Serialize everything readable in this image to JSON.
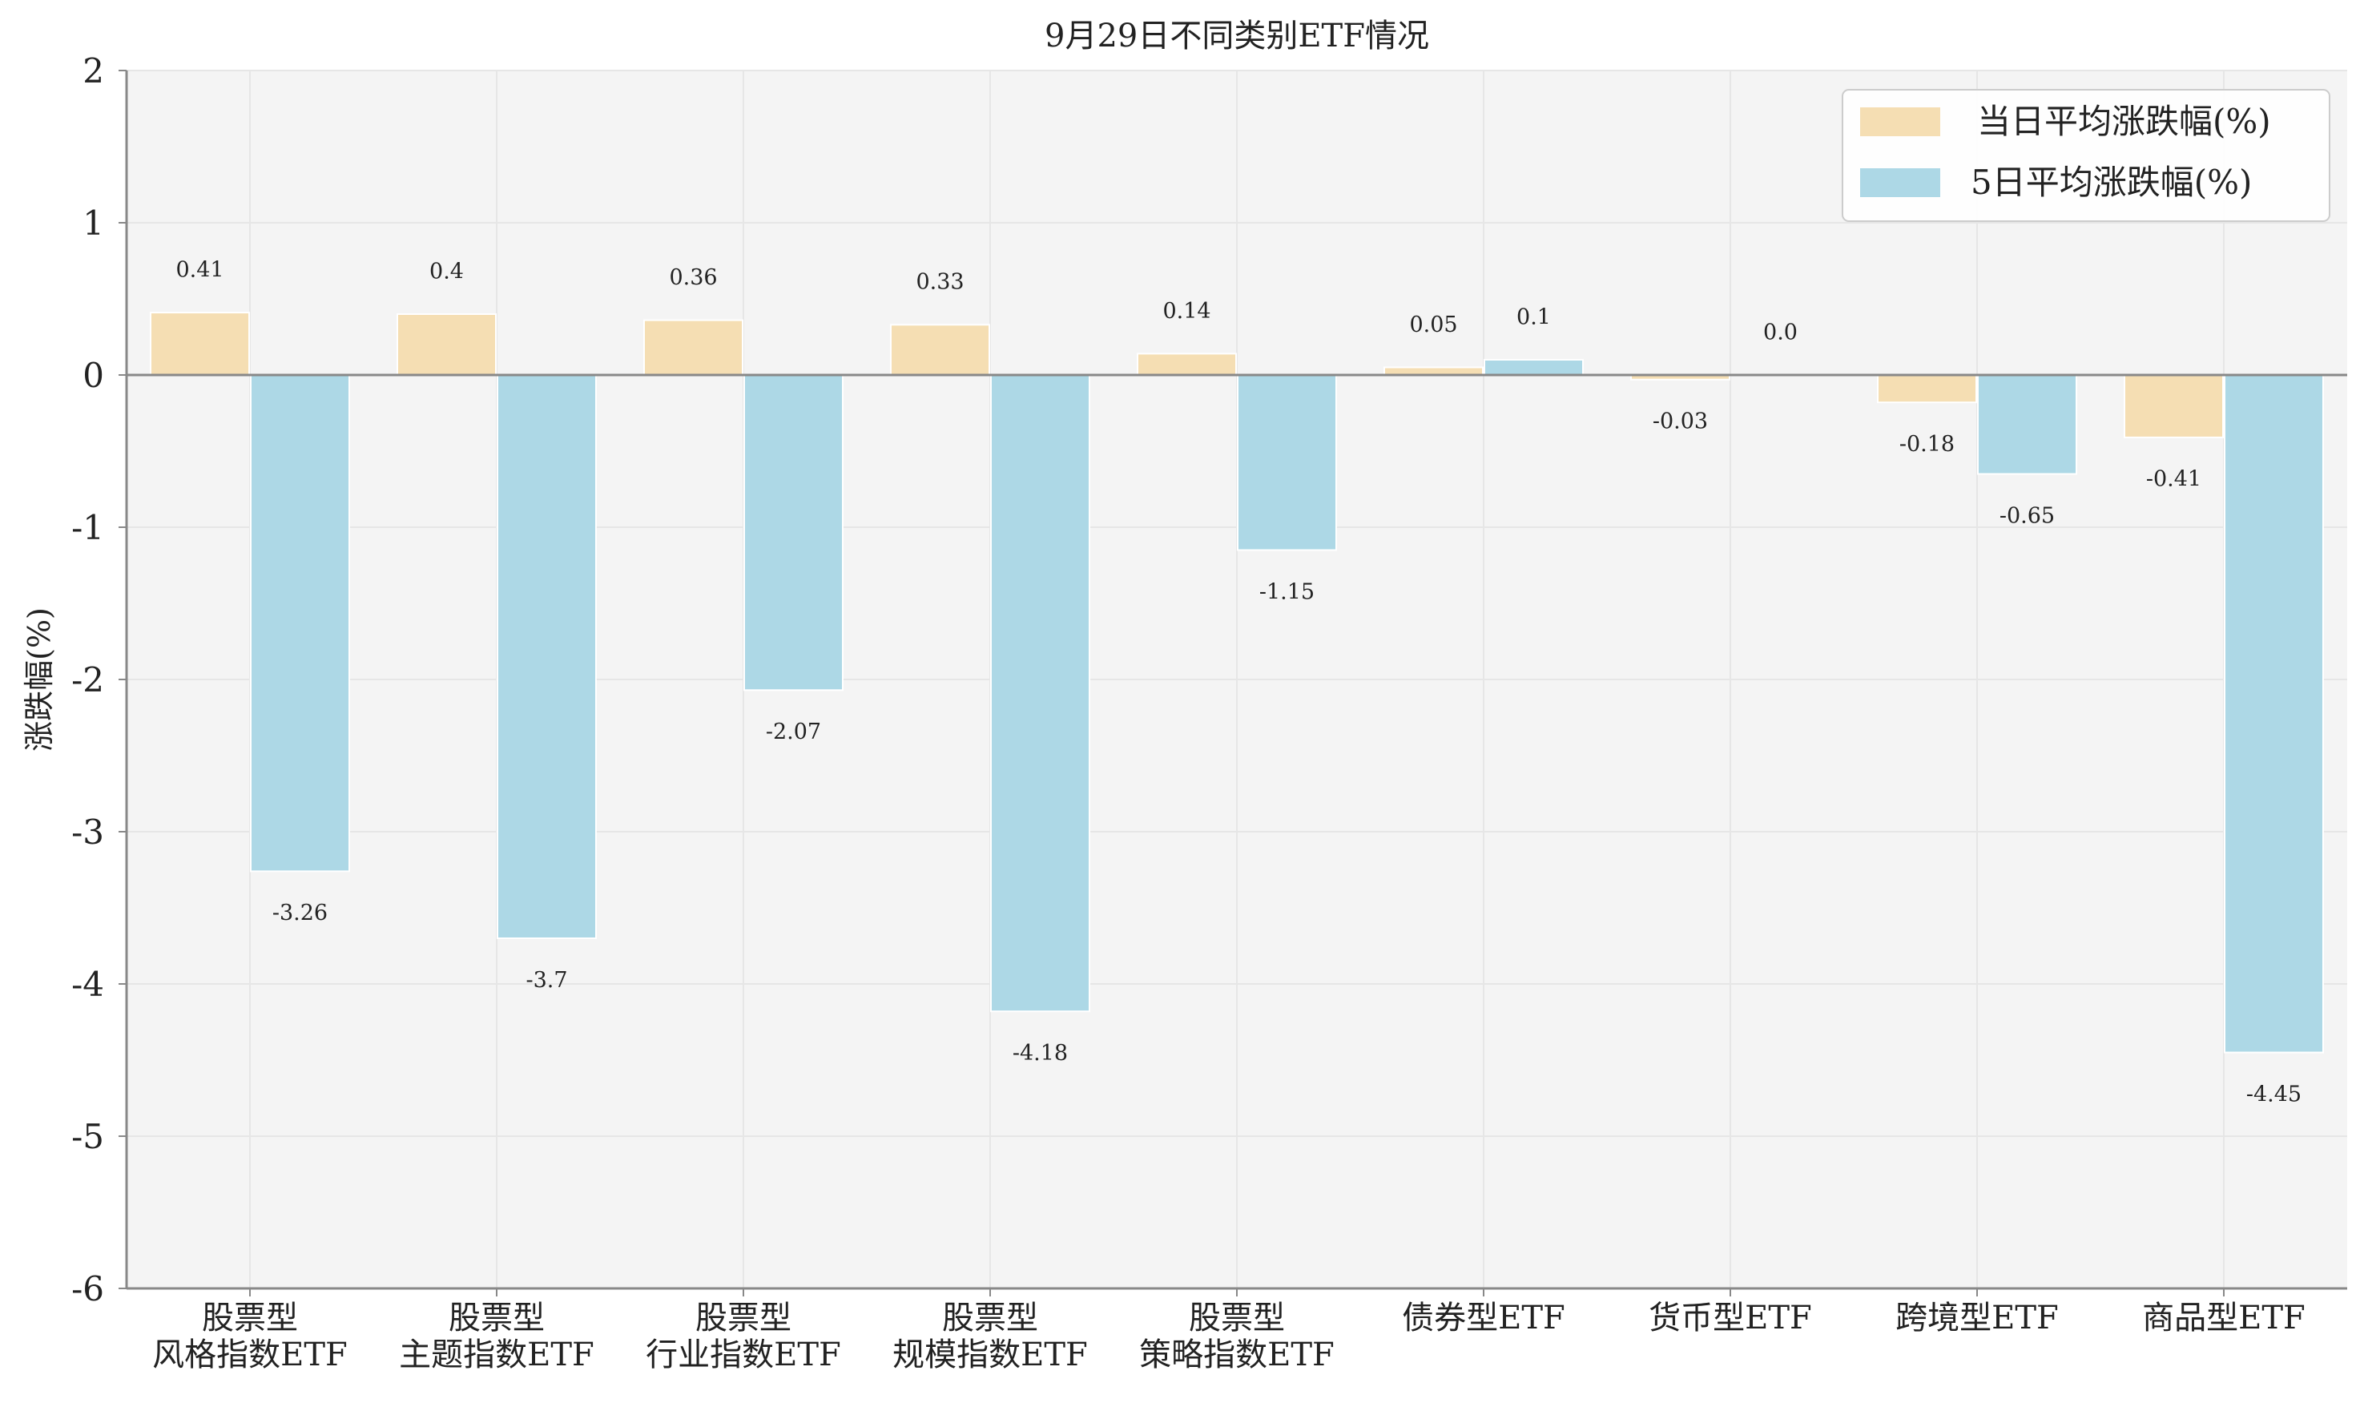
{
  "chart_data": {
    "type": "bar",
    "title": "9月29日不同类别ETF情况",
    "xlabel": "",
    "ylabel": "涨跌幅(%)",
    "ylim": [
      -6,
      2
    ],
    "yticks": [
      "2",
      "1",
      "0",
      "-1",
      "-2",
      "-3",
      "-4",
      "-5",
      "-6"
    ],
    "grid": true,
    "legend_position": "top-right",
    "categories": [
      [
        "股票型",
        "风格指数ETF"
      ],
      [
        "股票型",
        "主题指数ETF"
      ],
      [
        "股票型",
        "行业指数ETF"
      ],
      [
        "股票型",
        "规模指数ETF"
      ],
      [
        "股票型",
        "策略指数ETF"
      ],
      [
        "债券型ETF"
      ],
      [
        "货币型ETF"
      ],
      [
        "跨境型ETF"
      ],
      [
        "商品型ETF"
      ]
    ],
    "series": [
      {
        "name": "当日平均涨跌幅(%)",
        "color": "#f5deb3",
        "values": [
          0.41,
          0.4,
          0.36,
          0.33,
          0.14,
          0.05,
          -0.03,
          -0.18,
          -0.41
        ],
        "labels": [
          "0.41",
          "0.4",
          "0.36",
          "0.33",
          "0.14",
          "0.05",
          "-0.03",
          "-0.18",
          "-0.41"
        ]
      },
      {
        "name": "5日平均涨跌幅(%)",
        "color": "#add8e6",
        "values": [
          -3.26,
          -3.7,
          -2.07,
          -4.18,
          -1.15,
          0.1,
          0.0,
          -0.65,
          -4.45
        ],
        "labels": [
          "-3.26",
          "-3.7",
          "-2.07",
          "-4.18",
          "-1.15",
          "0.1",
          "0.0",
          "-0.65",
          "-4.45"
        ]
      }
    ],
    "colors": {
      "plot_background": "#f4f4f4",
      "grid": "#e6e6e6",
      "axis": "#888888",
      "zero_line": "#888888"
    }
  }
}
